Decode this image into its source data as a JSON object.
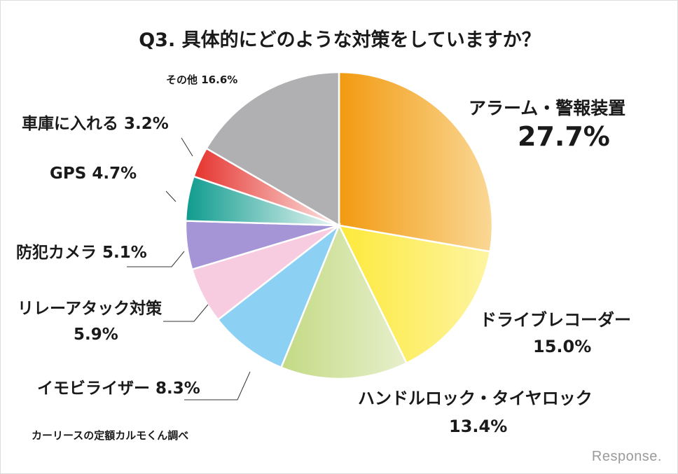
{
  "chart_data": {
    "type": "pie",
    "title": "Q3. 具体的にどのような対策をしていますか？",
    "start": "top",
    "direction": "clockwise",
    "slices": [
      {
        "label": "アラーム・警報装置",
        "value": 27.7,
        "value_text": "27.7%",
        "colors": [
          "#f29a10",
          "#fad896"
        ]
      },
      {
        "label": "ドライブレコーダー",
        "value": 15.0,
        "value_text": "15.0%",
        "colors": [
          "#fde93a",
          "#fdf4a2"
        ]
      },
      {
        "label": "ハンドルロック・タイヤロック",
        "value": 13.4,
        "value_text": "13.4%",
        "colors": [
          "#c3da84",
          "#e7efcc"
        ]
      },
      {
        "label": "イモビライザー",
        "value": 8.3,
        "value_text": "8.3%",
        "colors": [
          "#8cd0f3",
          "#8cd0f3"
        ]
      },
      {
        "label": "リレーアタック対策",
        "value": 5.9,
        "value_text": "5.9%",
        "colors": [
          "#f7cce1",
          "#f7cce1"
        ]
      },
      {
        "label": "防犯カメラ",
        "value": 5.1,
        "value_text": "5.1%",
        "colors": [
          "#a594d6",
          "#a594d6"
        ]
      },
      {
        "label": "GPS",
        "value": 4.7,
        "value_text": "4.7%",
        "colors": [
          "#0e9b8e",
          "#eef8f6"
        ]
      },
      {
        "label": "車庫に入れる",
        "value": 3.2,
        "value_text": "3.2%",
        "colors": [
          "#e5332e",
          "#fce6e4"
        ]
      },
      {
        "label": "その他",
        "value": 16.6,
        "value_text": "16.6%",
        "colors": [
          "#b0b0b2",
          "#b0b0b2"
        ]
      }
    ]
  },
  "source": "カーリースの定額カルモくん調べ",
  "watermark": "Response."
}
